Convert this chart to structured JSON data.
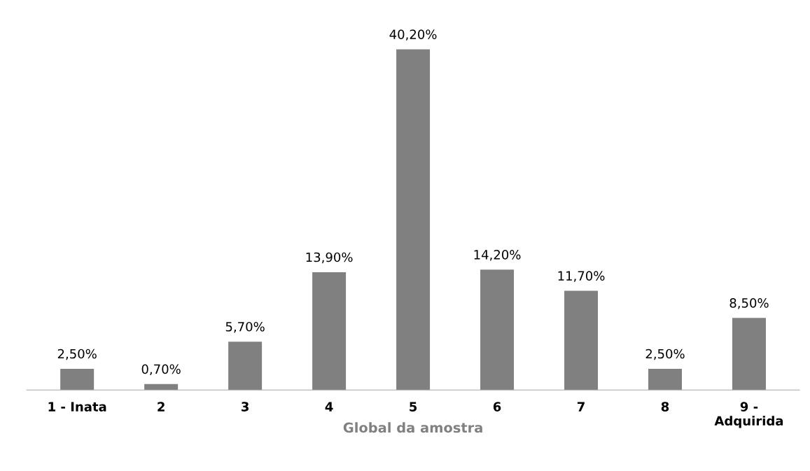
{
  "chart_data": {
    "type": "bar",
    "xlabel": "Global da amostra",
    "categories": [
      "1 - Inata",
      "2",
      "3",
      "4",
      "5",
      "6",
      "7",
      "8",
      "9 - Adquirida"
    ],
    "values": [
      2.5,
      0.7,
      5.7,
      13.9,
      40.2,
      14.2,
      11.7,
      2.5,
      8.5
    ],
    "value_labels": [
      "2,50%",
      "0,70%",
      "5,70%",
      "13,90%",
      "40,20%",
      "14,20%",
      "11,70%",
      "2,50%",
      "8,50%"
    ],
    "color": "#808080",
    "grid": false,
    "legend": false
  }
}
